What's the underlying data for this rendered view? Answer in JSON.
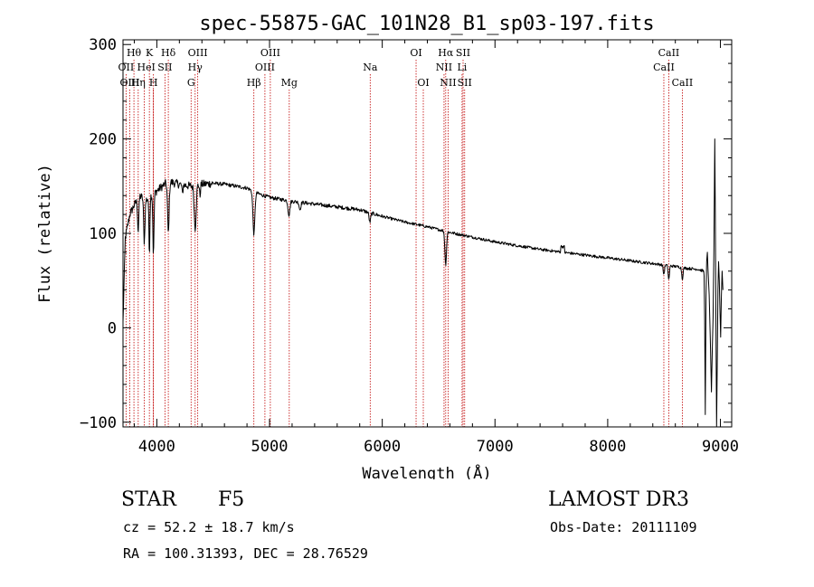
{
  "chart_data": {
    "type": "line",
    "title": "spec-55875-GAC_101N28_B1_sp03-197.fits",
    "xlabel": "Wavelength (Å)",
    "ylabel": "Flux (relative)",
    "xlim": [
      3700,
      9100
    ],
    "ylim": [
      -105,
      305
    ],
    "xticks": [
      4000,
      5000,
      6000,
      7000,
      8000,
      9000
    ],
    "xtick_labels": [
      "4000",
      "5000",
      "6000",
      "7000",
      "8000",
      "9000"
    ],
    "yticks": [
      -100,
      0,
      100,
      200,
      300
    ],
    "ytick_labels": [
      "−100",
      "0",
      "100",
      "200",
      "300"
    ],
    "line_color": "#000000",
    "marker_color": "#c00000",
    "continuum": [
      [
        3700,
        5
      ],
      [
        3720,
        95
      ],
      [
        3760,
        120
      ],
      [
        3800,
        130
      ],
      [
        3850,
        140
      ],
      [
        3900,
        135
      ],
      [
        3950,
        140
      ],
      [
        4000,
        145
      ],
      [
        4050,
        150
      ],
      [
        4100,
        155
      ],
      [
        4200,
        152
      ],
      [
        4300,
        150
      ],
      [
        4400,
        152
      ],
      [
        4500,
        153
      ],
      [
        4600,
        152
      ],
      [
        4700,
        150
      ],
      [
        4800,
        148
      ],
      [
        4900,
        142
      ],
      [
        5000,
        138
      ],
      [
        5200,
        134
      ],
      [
        5400,
        131
      ],
      [
        5600,
        128
      ],
      [
        5800,
        125
      ],
      [
        6000,
        118
      ],
      [
        6200,
        112
      ],
      [
        6400,
        107
      ],
      [
        6600,
        101
      ],
      [
        6800,
        96
      ],
      [
        7000,
        91
      ],
      [
        7200,
        87
      ],
      [
        7400,
        83
      ],
      [
        7600,
        80
      ],
      [
        7800,
        77
      ],
      [
        8000,
        74
      ],
      [
        8200,
        71
      ],
      [
        8400,
        68
      ],
      [
        8600,
        65
      ],
      [
        8700,
        63
      ],
      [
        8800,
        62
      ],
      [
        8850,
        60
      ]
    ],
    "absorption": [
      [
        3835,
        35,
        8
      ],
      [
        3889,
        45,
        8
      ],
      [
        3934,
        60,
        6
      ],
      [
        3970,
        65,
        7
      ],
      [
        4102,
        55,
        10
      ],
      [
        4227,
        10,
        6
      ],
      [
        4340,
        45,
        12
      ],
      [
        4383,
        12,
        6
      ],
      [
        4861,
        45,
        12
      ],
      [
        5172,
        15,
        12
      ],
      [
        5270,
        8,
        10
      ],
      [
        5890,
        10,
        10
      ],
      [
        6563,
        35,
        10
      ],
      [
        8498,
        10,
        8
      ],
      [
        8542,
        15,
        8
      ],
      [
        8662,
        12,
        8
      ]
    ],
    "tail": [
      [
        8855,
        55
      ],
      [
        8860,
        10
      ],
      [
        8866,
        -92
      ],
      [
        8872,
        30
      ],
      [
        8878,
        70
      ],
      [
        8884,
        80
      ],
      [
        8890,
        62
      ],
      [
        8900,
        35
      ],
      [
        8910,
        -10
      ],
      [
        8920,
        -68
      ],
      [
        8928,
        -20
      ],
      [
        8935,
        10
      ],
      [
        8942,
        80
      ],
      [
        8950,
        200
      ],
      [
        8955,
        120
      ],
      [
        8960,
        0
      ],
      [
        8966,
        -105
      ],
      [
        8972,
        -40
      ],
      [
        8978,
        40
      ],
      [
        8984,
        70
      ],
      [
        8990,
        50
      ],
      [
        8996,
        20
      ],
      [
        9002,
        -10
      ],
      [
        9008,
        30
      ],
      [
        9015,
        60
      ],
      [
        9022,
        40
      ]
    ],
    "line_markers": {
      "row1": [
        {
          "label": "Hθ",
          "x": 3797
        },
        {
          "label": "K",
          "x": 3934
        },
        {
          "label": "Hδ",
          "x": 4102
        },
        {
          "label": "OIII",
          "x": 4363
        },
        {
          "label": "OIII",
          "x": 5007
        },
        {
          "label": "OI",
          "x": 6300
        },
        {
          "label": "Hα",
          "x": 6563
        },
        {
          "label": "SII",
          "x": 6717
        },
        {
          "label": "CaII",
          "x": 8542
        }
      ],
      "row2": [
        {
          "label": "OII",
          "x": 3727
        },
        {
          "label": "He",
          "x": 3889
        },
        {
          "label": "I",
          "x": 3970
        },
        {
          "label": "SII",
          "x": 4072
        },
        {
          "label": "Hγ",
          "x": 4340
        },
        {
          "label": "OIII",
          "x": 4959
        },
        {
          "label": "Na",
          "x": 5893
        },
        {
          "label": "NII",
          "x": 6548
        },
        {
          "label": "Li",
          "x": 6708
        },
        {
          "label": "CaII",
          "x": 8498
        }
      ],
      "row3": [
        {
          "label": "OIII",
          "x": 3760
        },
        {
          "label": "Hη",
          "x": 3835
        },
        {
          "label": "H",
          "x": 3970
        },
        {
          "label": "G",
          "x": 4304
        },
        {
          "label": "Hβ",
          "x": 4861
        },
        {
          "label": "Mg",
          "x": 5175
        },
        {
          "label": "OI",
          "x": 6364
        },
        {
          "label": "NII",
          "x": 6584
        },
        {
          "label": "SII",
          "x": 6731
        },
        {
          "label": "CaII",
          "x": 8662
        }
      ]
    }
  },
  "info": {
    "object_type": "STAR",
    "subclass": "F5",
    "survey": "LAMOST DR3",
    "redshift": "cz = 52.2 ± 18.7 km/s",
    "obs_date": "Obs-Date: 20111109",
    "coords": "RA = 100.31393, DEC =  28.76529"
  }
}
